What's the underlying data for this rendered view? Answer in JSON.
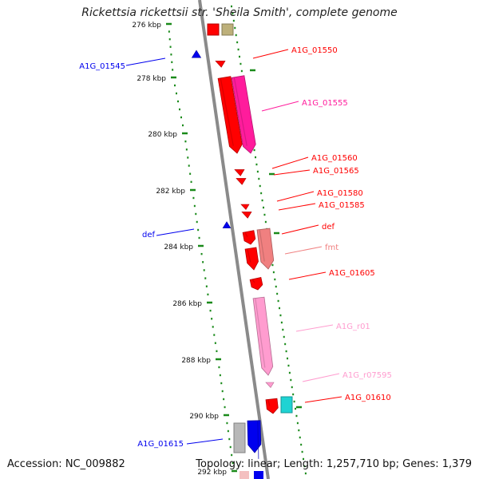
{
  "title": "Rickettsia rickettsii str. 'Sheila Smith', complete genome",
  "footer": {
    "accession": "Accession: NC_009882",
    "summary": "Topology: linear; Length: 1,257,710 bp; Genes: 1,379"
  },
  "colors": {
    "backbone": "#8a8a8a",
    "tick": "#1a8a1a",
    "red": "#ff0000",
    "magenta": "#ff1c9c",
    "salmon": "#f08080",
    "pink": "#ff9ccf",
    "cyan": "#1fd3d3",
    "blue": "#0000ee",
    "gray": "#b8b8b8",
    "olive": "#bdb07a"
  },
  "ticks": [
    "276 kbp",
    "278 kbp",
    "280 kbp",
    "282 kbp",
    "284 kbp",
    "286 kbp",
    "288 kbp",
    "290 kbp",
    "292 kbp"
  ],
  "genes": [
    {
      "label": "A1G_01545",
      "strand": "minus",
      "color": "blue"
    },
    {
      "label": "A1G_01550",
      "strand": "plus",
      "color": "red"
    },
    {
      "label": "A1G_01555",
      "strand": "plus",
      "color": "magenta"
    },
    {
      "label": "A1G_01560",
      "strand": "plus",
      "color": "red"
    },
    {
      "label": "A1G_01565",
      "strand": "plus",
      "color": "red"
    },
    {
      "label": "A1G_01580",
      "strand": "plus",
      "color": "red"
    },
    {
      "label": "A1G_01585",
      "strand": "plus",
      "color": "red"
    },
    {
      "label": "def",
      "strand": "minus",
      "color": "blue"
    },
    {
      "label": "def",
      "strand": "plus",
      "color": "red"
    },
    {
      "label": "fmt",
      "strand": "plus",
      "color": "salmon"
    },
    {
      "label": "A1G_01605",
      "strand": "plus",
      "color": "red"
    },
    {
      "label": "A1G_r01",
      "strand": "plus",
      "color": "pink"
    },
    {
      "label": "A1G_r07595",
      "strand": "plus",
      "color": "pink"
    },
    {
      "label": "A1G_01610",
      "strand": "plus",
      "color": "red"
    },
    {
      "label": "A1G_01615",
      "strand": "minus",
      "color": "blue"
    }
  ]
}
